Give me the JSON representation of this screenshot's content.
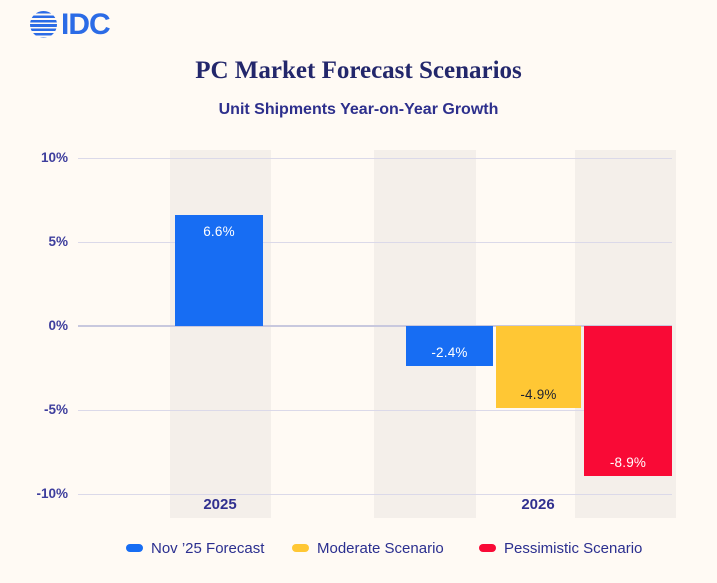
{
  "logo": {
    "text": "IDC"
  },
  "header": {
    "title": "PC Market Forecast Scenarios",
    "subtitle": "Unit Shipments Year-on-Year Growth"
  },
  "colors": {
    "background": "#FFFAF4",
    "column_band": "#F4EFEA",
    "gridline": "#DBD9E9",
    "zero_line": "#C8C8DE",
    "title_text": "#23276B",
    "subtitle_text": "#2D2F8C",
    "axis_text": "#3E3E9D",
    "logo_blue": "#2B6BE6",
    "forecast_blue": "#176DF3",
    "moderate_yellow": "#FFC734",
    "pessimistic_red": "#F90A36"
  },
  "chart_data": {
    "type": "bar",
    "title": "PC Market Forecast Scenarios",
    "subtitle": "Unit Shipments Year-on-Year Growth",
    "categories": [
      "2025",
      "2026"
    ],
    "series": [
      {
        "name": "Nov ’25 Forecast",
        "color": "#176DF3",
        "values": [
          6.6,
          -2.4
        ]
      },
      {
        "name": "Moderate Scenario",
        "color": "#FFC734",
        "values": [
          null,
          -4.9
        ]
      },
      {
        "name": "Pessimistic Scenario",
        "color": "#F90A36",
        "values": [
          null,
          -8.9
        ]
      }
    ],
    "ylim": [
      -10,
      10
    ],
    "yticks": [
      10,
      5,
      0,
      -5,
      -10
    ],
    "ytick_labels": [
      "10%",
      "5%",
      "0%",
      "-5%",
      "-10%"
    ],
    "grid": true,
    "legend_position": "bottom",
    "bars": [
      {
        "category": "2025",
        "series": "Nov ’25 Forecast",
        "value": 6.6,
        "label": "6.6%",
        "color": "#176DF3",
        "label_color": "#FFFFFF"
      },
      {
        "category": "2026",
        "series": "Nov ’25 Forecast",
        "value": -2.4,
        "label": "-2.4%",
        "color": "#176DF3",
        "label_color": "#FFFFFF"
      },
      {
        "category": "2026",
        "series": "Moderate Scenario",
        "value": -4.9,
        "label": "-4.9%",
        "color": "#FFC734",
        "label_color": "#1D2130"
      },
      {
        "category": "2026",
        "series": "Pessimistic Scenario",
        "value": -8.9,
        "label": "-8.9%",
        "color": "#F90A36",
        "label_color": "#FFFFFF"
      }
    ]
  },
  "legend": {
    "items": [
      {
        "label": "Nov ’25 Forecast",
        "color": "#176DF3"
      },
      {
        "label": "Moderate Scenario",
        "color": "#FFC734"
      },
      {
        "label": "Pessimistic Scenario",
        "color": "#F90A36"
      }
    ]
  }
}
